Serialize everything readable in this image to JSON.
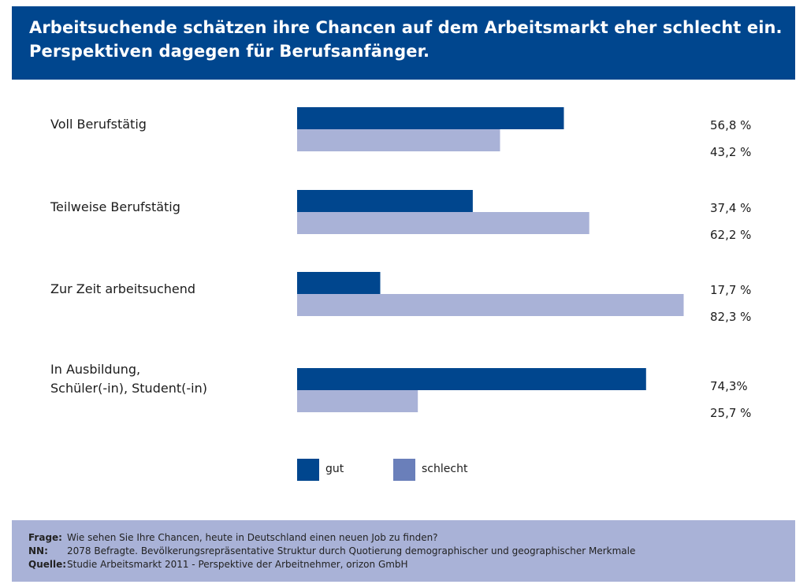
{
  "header": {
    "line1": "Arbeitsuchende schätzen ihre Chancen auf dem Arbeitsmarkt eher schlecht ein.",
    "line2": "Perspektiven dagegen für Berufsanfänger."
  },
  "colors": {
    "header_bg": "#00468e",
    "gut": "#00468e",
    "schlecht": "#a9b2d7",
    "legend_schlecht": "#6a7fba",
    "footer_bg": "#a9b2d7"
  },
  "chart_data": {
    "type": "bar",
    "orientation": "horizontal",
    "categories": [
      [
        "Voll Berufstätig"
      ],
      [
        "Teilweise Berufstätig"
      ],
      [
        "Zur Zeit arbeitsuchend"
      ],
      [
        "In Ausbildung,",
        "Schüler(-in), Student(-in)"
      ]
    ],
    "series": [
      {
        "name": "gut",
        "values": [
          56.8,
          37.4,
          17.7,
          74.3
        ],
        "labels": [
          "56,8 %",
          "37,4 %",
          "17,7 %",
          "74,3%"
        ]
      },
      {
        "name": "schlecht",
        "values": [
          43.2,
          62.2,
          82.3,
          25.7
        ],
        "labels": [
          "43,2 %",
          "62,2 %",
          "82,3 %",
          "25,7 %"
        ]
      }
    ],
    "xlim": [
      0,
      100
    ],
    "grid": false,
    "legend_position": "bottom"
  },
  "footer": {
    "rows": [
      {
        "key": "Frage:",
        "text": "Wie sehen Sie Ihre Chancen, heute in Deutschland einen neuen Job zu finden?"
      },
      {
        "key": "NN:",
        "text": "2078 Befragte. Bevölkerungsrepräsentative Struktur durch Quotierung demographischer und geographischer Merkmale"
      },
      {
        "key": "Quelle:",
        "text": "Studie Arbeitsmarkt 2011 - Perspektive der Arbeitnehmer, orizon GmbH"
      }
    ]
  }
}
